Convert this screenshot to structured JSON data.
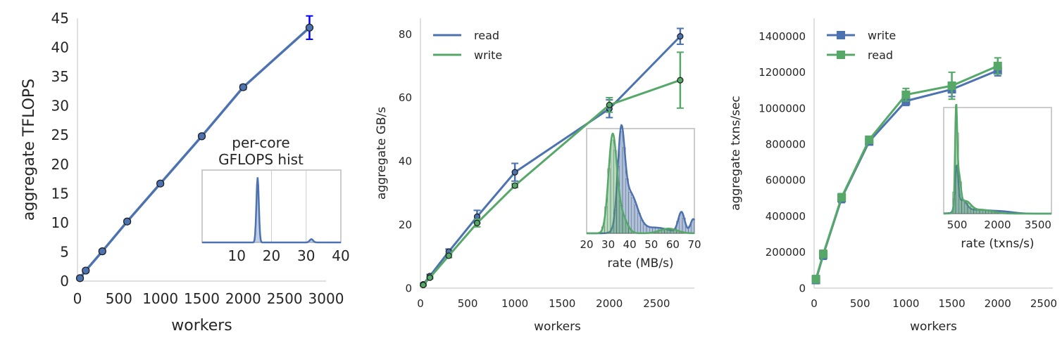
{
  "colors": {
    "blue": "#4c72b0",
    "green": "#55a868",
    "errblue": "#0000ff",
    "dark": "#1a1a2e"
  },
  "chart_data": [
    {
      "type": "line",
      "xlabel": "workers",
      "ylabel": "aggregate TFLOPS",
      "xlim": [
        0,
        3000
      ],
      "ylim": [
        0,
        45
      ],
      "xticks": [
        0,
        500,
        1000,
        1500,
        2000,
        2500,
        3000
      ],
      "yticks": [
        0,
        5,
        10,
        15,
        20,
        25,
        30,
        35,
        40,
        45
      ],
      "grid": false,
      "series": [
        {
          "color": "blue",
          "points": [
            {
              "x": 30,
              "y": 0.5,
              "err": 0.3
            },
            {
              "x": 100,
              "y": 1.8,
              "err": 0.3
            },
            {
              "x": 300,
              "y": 5.1,
              "err": 0.3
            },
            {
              "x": 600,
              "y": 10.2,
              "err": 0.3
            },
            {
              "x": 1000,
              "y": 16.7,
              "err": 0.3
            },
            {
              "x": 1500,
              "y": 24.8,
              "err": 0.3
            },
            {
              "x": 2000,
              "y": 33.2,
              "err": 0.4
            },
            {
              "x": 2800,
              "y": 43.4,
              "err": 2.0
            }
          ]
        }
      ],
      "inset": {
        "title_line1": "per-core",
        "title_line2": "GFLOPS hist",
        "type": "histogram-density",
        "xlim": [
          0,
          40
        ],
        "xticks": [
          10,
          20,
          30,
          40
        ],
        "grid_x": [
          20,
          30
        ],
        "peaks": [
          {
            "center": 16,
            "width": 0.35,
            "height": 1.0
          },
          {
            "center": 31.5,
            "width": 0.5,
            "height": 0.05
          }
        ]
      }
    },
    {
      "type": "line",
      "xlabel": "workers",
      "ylabel": "aggregate GB/s",
      "xlim": [
        0,
        2900
      ],
      "ylim": [
        0,
        85
      ],
      "xticks": [
        0,
        500,
        1000,
        1500,
        2000,
        2500
      ],
      "yticks": [
        0,
        20,
        40,
        60,
        80
      ],
      "grid": false,
      "legend": "top-left",
      "series": [
        {
          "name": "read",
          "color": "blue",
          "points": [
            {
              "x": 30,
              "y": 1.2,
              "err": 0.3
            },
            {
              "x": 100,
              "y": 3.8,
              "err": 0.5
            },
            {
              "x": 300,
              "y": 11.5,
              "err": 0.8
            },
            {
              "x": 600,
              "y": 22.5,
              "err": 2.0
            },
            {
              "x": 1000,
              "y": 36.5,
              "err": 2.8
            },
            {
              "x": 2000,
              "y": 56.5,
              "err": 2.8
            },
            {
              "x": 2750,
              "y": 79.3,
              "err": 2.5
            }
          ]
        },
        {
          "name": "write",
          "color": "green",
          "points": [
            {
              "x": 30,
              "y": 1.0,
              "err": 0.3
            },
            {
              "x": 100,
              "y": 3.3,
              "err": 0.4
            },
            {
              "x": 300,
              "y": 10.2,
              "err": 0.6
            },
            {
              "x": 600,
              "y": 20.5,
              "err": 1.2
            },
            {
              "x": 1000,
              "y": 32.3,
              "err": 0.6
            },
            {
              "x": 2000,
              "y": 57.7,
              "err": 2.3
            },
            {
              "x": 2750,
              "y": 65.5,
              "err": 8.8
            }
          ]
        }
      ],
      "inset": {
        "xlabel": "rate (MB/s)",
        "type": "histogram-density",
        "xlim": [
          20,
          70
        ],
        "xticks": [
          20,
          30,
          40,
          50,
          60,
          70
        ],
        "grid_x": [],
        "density": [
          {
            "series": "read",
            "peaks": [
              {
                "center": 36,
                "width": 1.6,
                "height": 0.92
              },
              {
                "center": 40,
                "width": 3.5,
                "height": 0.42
              },
              {
                "center": 64,
                "width": 1.5,
                "height": 0.22
              },
              {
                "center": 69.5,
                "width": 1.3,
                "height": 0.15
              },
              {
                "center": 52,
                "width": 6,
                "height": 0.06
              }
            ]
          },
          {
            "series": "write",
            "peaks": [
              {
                "center": 32,
                "width": 1.9,
                "height": 1.0
              },
              {
                "center": 36,
                "width": 2.5,
                "height": 0.2
              },
              {
                "center": 58,
                "width": 4,
                "height": 0.05
              }
            ]
          }
        ]
      }
    },
    {
      "type": "line",
      "xlabel": "workers",
      "ylabel": "aggregate txns/sec",
      "xlim": [
        0,
        2600
      ],
      "ylim": [
        0,
        1500000
      ],
      "xticks": [
        0,
        500,
        1000,
        1500,
        2000,
        2500
      ],
      "yticks": [
        0,
        200000,
        400000,
        600000,
        800000,
        1000000,
        1200000,
        1400000
      ],
      "grid": false,
      "legend": "top-left",
      "series": [
        {
          "name": "write",
          "color": "blue",
          "points": [
            {
              "x": 20,
              "y": 45000,
              "err": 20000
            },
            {
              "x": 100,
              "y": 185000,
              "err": 25000
            },
            {
              "x": 300,
              "y": 500000,
              "err": 25000
            },
            {
              "x": 600,
              "y": 815000,
              "err": 20000
            },
            {
              "x": 1000,
              "y": 1040000,
              "err": 25000
            },
            {
              "x": 1500,
              "y": 1105000,
              "err": 40000
            },
            {
              "x": 2000,
              "y": 1210000,
              "err": 30000
            }
          ]
        },
        {
          "name": "read",
          "color": "green",
          "points": [
            {
              "x": 20,
              "y": 50000,
              "err": 20000
            },
            {
              "x": 100,
              "y": 190000,
              "err": 20000
            },
            {
              "x": 300,
              "y": 505000,
              "err": 20000
            },
            {
              "x": 600,
              "y": 825000,
              "err": 15000
            },
            {
              "x": 1000,
              "y": 1075000,
              "err": 35000
            },
            {
              "x": 1500,
              "y": 1125000,
              "err": 75000
            },
            {
              "x": 2000,
              "y": 1235000,
              "err": 45000
            }
          ]
        }
      ],
      "inset": {
        "xlabel": "rate (txns/s)",
        "type": "histogram-density",
        "xlim": [
          0,
          4000
        ],
        "xticks": [
          500,
          2000,
          3500
        ],
        "grid_x": [],
        "density": [
          {
            "series": "write",
            "peaks": [
              {
                "center": 480,
                "width": 60,
                "height": 0.45
              },
              {
                "center": 700,
                "width": 150,
                "height": 0.12
              },
              {
                "center": 1200,
                "width": 500,
                "height": 0.04
              },
              {
                "center": 2200,
                "width": 400,
                "height": 0.02
              }
            ]
          },
          {
            "series": "read",
            "peaks": [
              {
                "center": 460,
                "width": 40,
                "height": 1.0
              },
              {
                "center": 560,
                "width": 70,
                "height": 0.35
              },
              {
                "center": 800,
                "width": 200,
                "height": 0.12
              },
              {
                "center": 1400,
                "width": 400,
                "height": 0.04
              }
            ]
          }
        ]
      }
    }
  ]
}
